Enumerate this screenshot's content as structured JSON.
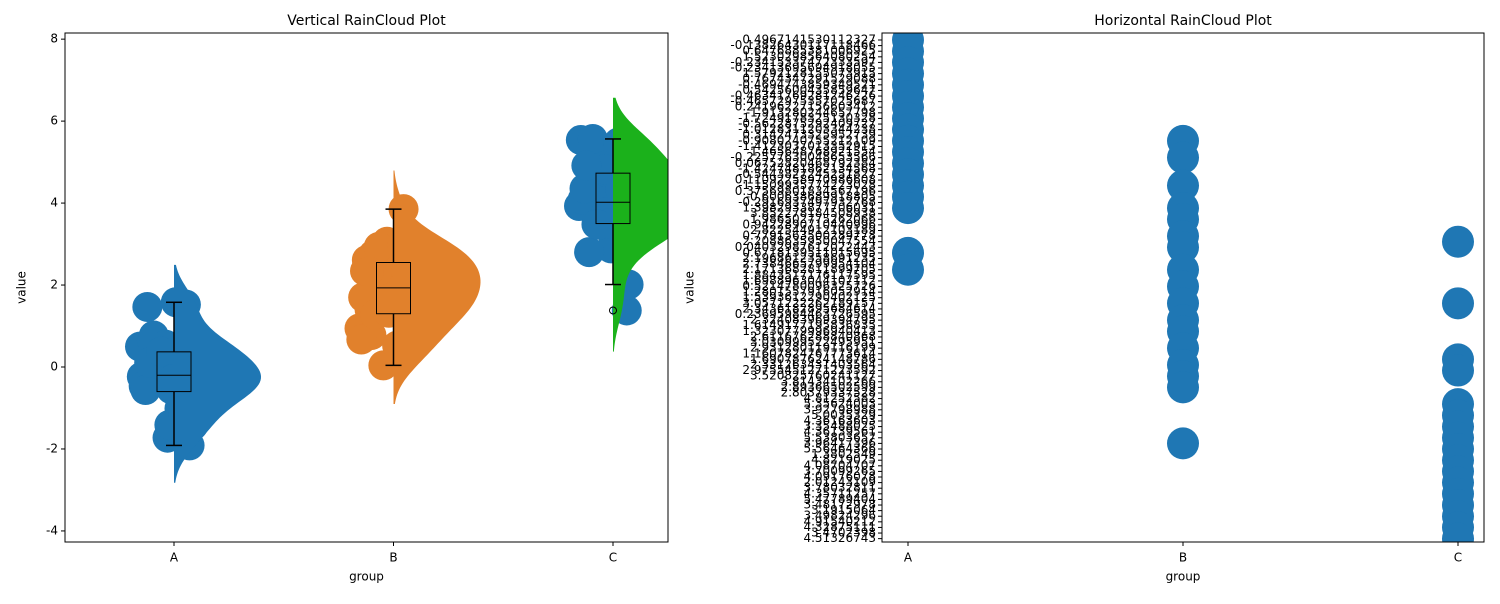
{
  "chart_data": [
    {
      "type": "raincloud",
      "title": "Vertical RainCloud Plot",
      "xlabel": "group",
      "ylabel": "value",
      "categories": [
        "A",
        "B",
        "C"
      ],
      "colors": [
        "#1f77b4",
        "#e1812c",
        "#1bb11b"
      ],
      "point_colors": [
        "#1f77b4",
        "#e1812c",
        "#1f77b4"
      ],
      "values": [
        [
          0.4967141530112327,
          -0.13826430117118466,
          0.6476885381006925,
          1.5230298564080254,
          -0.23415337472333597,
          -0.23413695694918055,
          1.5792128155073915,
          0.7674347291529088,
          -0.4694743859349521,
          0.5425600435859647,
          -0.46341769281246226,
          -0.46572975357025687,
          0.24196227156603412,
          -1.913280244657798,
          -1.7249178325130328,
          -0.5622875292409727,
          -1.0128311203344238,
          0.3142473325952739,
          -0.9080240755212109,
          -1.4123037013352915,
          1.465648768921554,
          -0.22577630048653566,
          0.06752820468792384,
          -1.4247481862134568,
          -0.5443827245251827,
          0.11092258970986608,
          -1.1509935774223028,
          0.37569801834567196,
          -0.600638689918805,
          -0.2916937497932768
        ],
        [
          1.3982933877706032,
          3.852278184508938,
          1.986502775262066,
          0.9422890710440996,
          2.822544912103189,
          0.7791563500289778,
          2.2088635950047553,
          0.04032987612022443,
          0.6718139511015695,
          2.1968612358691235,
          2.73846657999541,
          2.1713682811899706,
          1.8843517176117595,
          1.6988963044107113,
          0.5214780096325726,
          1.2801557916052915,
          1.5393612290402126,
          3.0571222262189157,
          2.3436182895684614,
          0.23695984463726594,
          2.324083969394795,
          1.6149177195836835,
          1.3230779996940414,
          2.611676288840868,
          3.030999522495951,
          2.931280119116199,
          1.1607824767773613,
          1.690787624148786,
          2.331263431403564,
          2.975545127122359
        ],
        [
          3.520825760241127,
          3.81434102266,
          2.89366502599,
          2.80379337528,
          4.81252582,
          5.35624003,
          3.92798988,
          5.0035329,
          4.36163603,
          3.35488025,
          4.36139561,
          5.53803657,
          3.96417396,
          5.56464366,
          1.3802549,
          4.8219025,
          4.08704707,
          3.70099265,
          4.09176078,
          2.01243109,
          3.78032811,
          4.35711257,
          5.47789404,
          3.48172978,
          3.1915064,
          3.49824296,
          4.91540212,
          4.32875111,
          3.4702398,
          4.51326743
        ]
      ],
      "box": [
        {
          "q1": -0.6,
          "median": -0.2,
          "q3": 0.37,
          "whisker_low": -1.913280244657798,
          "whisker_high": 1.5792128155073915
        },
        {
          "q1": 1.3,
          "median": 1.93,
          "q3": 2.55,
          "whisker_low": 0.04032987612022443,
          "whisker_high": 3.852278184508938
        },
        {
          "q1": 3.5,
          "median": 4.02,
          "q3": 4.73,
          "whisker_low": 2.01243109,
          "whisker_high": 5.56464366
        }
      ],
      "ylim": [
        -4.27,
        8.15
      ],
      "yticks": [
        -4,
        -2,
        0,
        2,
        4,
        6,
        8
      ]
    },
    {
      "type": "strip",
      "title": "Horizontal RainCloud Plot",
      "xlabel": "group",
      "ylabel": "value",
      "categories": [
        "A",
        "B",
        "C"
      ],
      "color": "#1f77b4",
      "y_categories": [
        "0.4967141530112327",
        "-0.13826430117118466",
        "0.6476885381006925",
        "1.5230298564080254",
        "-0.23415337472333597",
        "-0.23413695694918055",
        "1.5792128155073915",
        "0.7674347291529088",
        "-0.4694743859349521",
        "0.5425600435859647",
        "-0.46341769281246226",
        "-0.46572975357025687",
        "0.24196227156603412",
        "-1.913280244657798",
        "-1.7249178325130328",
        "-0.5622875292409727",
        "-1.0128311203344238",
        "0.3142473325952739",
        "-0.9080240755212109",
        "-1.4123037013352915",
        "1.465648768921554",
        "-0.22577630048653566",
        "0.06752820468792384",
        "-1.4247481862134568",
        "-0.5443827245251827",
        "0.11092258970986608",
        "-1.1509935774223028",
        "0.37569801834567196",
        "-0.600638689918805",
        "-0.2916937497932768",
        "1.3982933877706031",
        "3.852278184508938",
        "1.986502775262066",
        "0.9422890710440996",
        "2.822544912103189",
        "0.7791563500289778",
        "2.2088635950047554",
        "0.04032987612022443",
        "0.6718139511015695",
        "2.1968612358691235",
        "2.7384665799954104",
        "2.1713682811899705",
        "1.8843517176117595",
        "1.6988963044107112",
        "0.5214780096325726",
        "1.2801557916052914",
        "1.5393612290402125",
        "3.0571222262189157",
        "2.3436182895684614",
        "0.23695984463726595",
        "2.324083969394795",
        "1.6149177195836835",
        "1.3230779996940413",
        "2.611676288840868",
        "3.030999522495951",
        "2.931280119116199",
        "1.1607824767773614",
        "1.690787624148786",
        "2.331263431403564",
        "2.9755451271223592",
        "3.520825760241127",
        "3.81434102266",
        "2.89366502599",
        "2.80379337528",
        "4.81252582",
        "5.35624003",
        "3.92798988",
        "5.0035329",
        "4.36163603",
        "3.35488025",
        "4.36139561",
        "5.53803657",
        "3.96417396",
        "5.56464366",
        "1.3802549",
        "4.8219025",
        "4.08704707",
        "3.70099265",
        "4.09176078",
        "2.01243109",
        "3.78032811",
        "4.35711257",
        "5.47789404",
        "3.48172978",
        "3.1915064",
        "3.49824296",
        "4.91540212",
        "4.32875111",
        "3.4702398",
        "4.51326743"
      ],
      "values": [
        [
          0,
          2,
          4,
          6,
          8,
          10,
          12,
          14,
          16,
          18,
          20,
          22,
          24,
          26,
          28,
          30,
          38,
          41
        ],
        [
          18,
          21,
          26,
          30,
          32,
          35,
          37,
          41,
          44,
          47,
          50,
          52,
          55,
          58,
          60,
          62,
          72
        ],
        [
          36,
          47,
          57,
          59,
          65,
          67,
          69,
          71,
          73,
          75,
          77,
          79,
          81,
          83,
          85,
          87,
          89
        ]
      ],
      "ylim": [
        89.6,
        -1.25
      ]
    }
  ]
}
